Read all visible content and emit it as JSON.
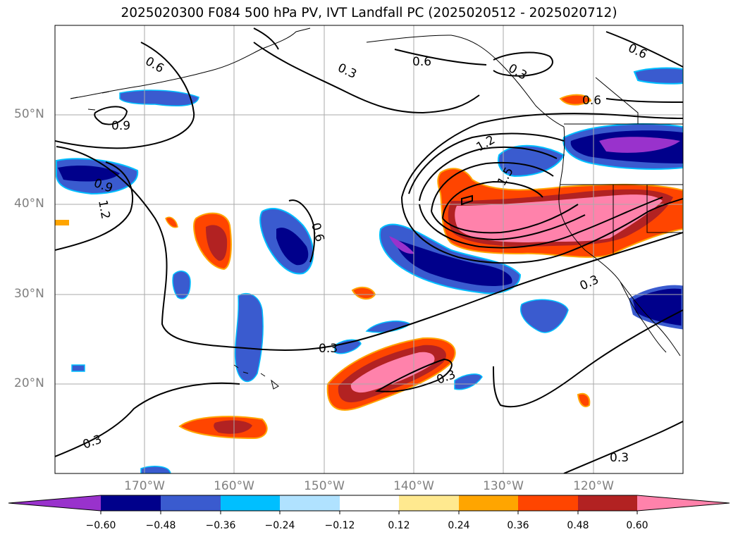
{
  "title": "2025020300 F084 500 hPa PV, IVT Landfall PC (2025020512 - 2025020712)",
  "map": {
    "lon_range": [
      -181,
      -111
    ],
    "lat_range": [
      10,
      60
    ],
    "gridlines": true,
    "lat_labels": [
      "50°N",
      "40°N",
      "30°N",
      "20°N"
    ],
    "lon_labels": [
      "170°W",
      "160°W",
      "150°W",
      "140°W",
      "130°W",
      "120°W"
    ],
    "contour_labels": [
      "0.6",
      "0.3",
      "0.6",
      "0.3",
      "0.6",
      "0.9",
      "0.9",
      "1.2",
      "0.6",
      "0.6",
      "1.2",
      "1.5",
      "0.3",
      "0.3",
      "0.3",
      "0.3",
      "0.3"
    ]
  },
  "colorbar": {
    "labels": [
      "−0.60",
      "−0.48",
      "−0.36",
      "−0.24",
      "−0.12",
      "0.12",
      "0.24",
      "0.36",
      "0.48",
      "0.60"
    ],
    "colors": [
      "#9932cc",
      "#00008b",
      "#3a5bcf",
      "#00bfff",
      "#b0e2ff",
      "#ffffff",
      "#ffe98f",
      "#ffa500",
      "#ff4500",
      "#b22222",
      "#ff82ab"
    ],
    "extend": "both"
  }
}
